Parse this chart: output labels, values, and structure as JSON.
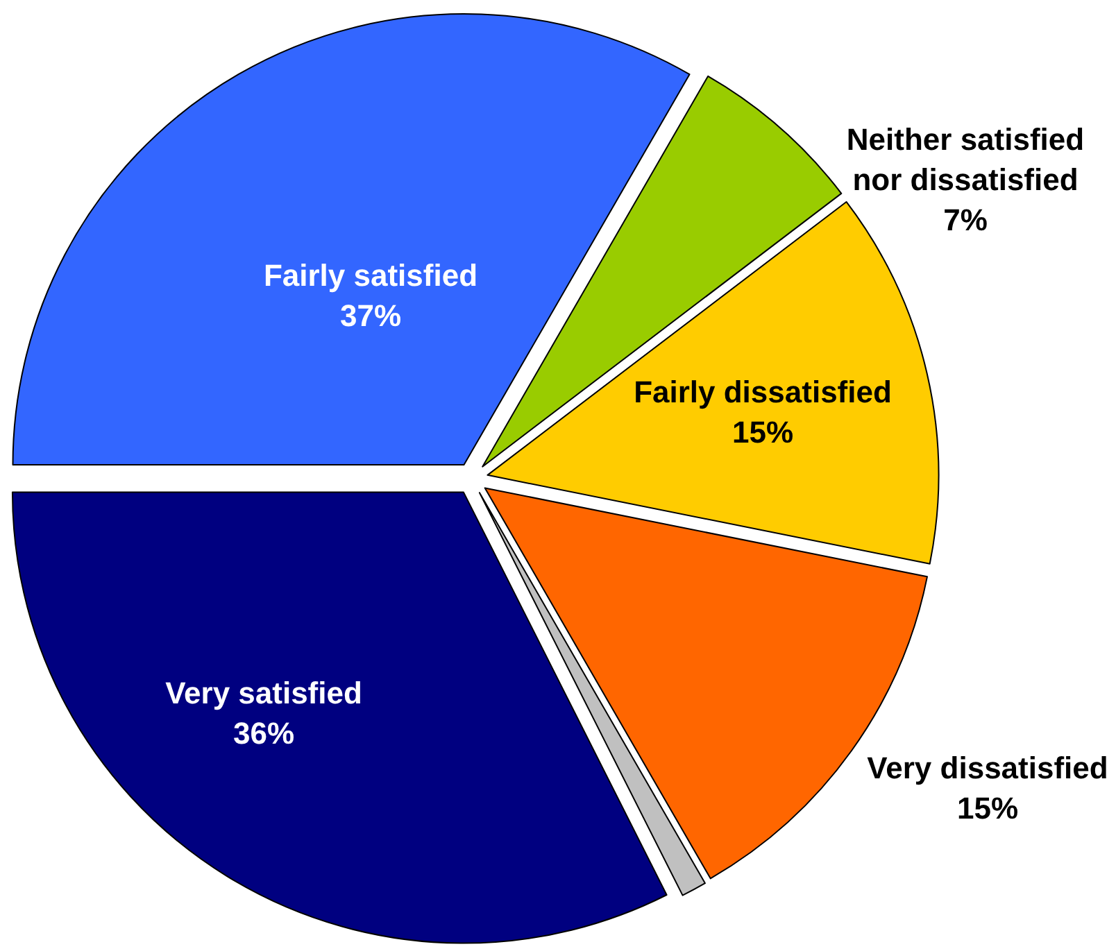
{
  "chart_data": {
    "type": "pie",
    "categories": [
      "Very satisfied",
      "Fairly satisfied",
      "Neither satisfied nor dissatisfied",
      "Fairly dissatisfied",
      "Very dissatisfied",
      null
    ],
    "values": [
      36,
      37,
      7,
      15,
      15,
      1
    ],
    "colors": [
      "#000080",
      "#3366ff",
      "#99cc00",
      "#ffcc00",
      "#ff6600",
      "#c0c0c0"
    ],
    "value_labels": [
      "36%",
      "37%",
      "7%",
      "15%",
      "15%",
      null
    ]
  }
}
